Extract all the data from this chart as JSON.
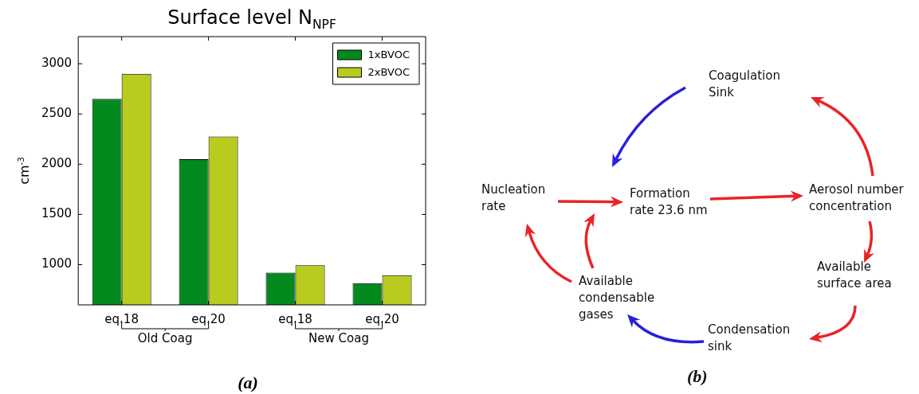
{
  "chart_data": [
    {
      "type": "bar",
      "title": "Surface level N$_{NPF}$",
      "ylabel": "cm$^{-3}$",
      "categories": [
        "eq.18",
        "eq.20",
        "eq.18",
        "eq.20"
      ],
      "series": [
        {
          "name": "1xBVOC",
          "color": "#038a1f",
          "values": [
            2650,
            2050,
            920,
            815
          ]
        },
        {
          "name": "2xBVOC",
          "color": "#b8cb1e",
          "values": [
            2900,
            2275,
            995,
            895
          ]
        }
      ],
      "ylim": [
        600,
        3270
      ],
      "yticks": [
        1000,
        1500,
        2000,
        2500,
        3000
      ],
      "legend": "top right",
      "annotations": [
        "Old Coag",
        "New Coag",
        "(a)"
      ]
    },
    {
      "type": "other",
      "annotations": [
        "Coagulation\nSink",
        "Nucleation\nrate",
        "Formation\nrate 23.6 nm",
        "Aerosol number\nconcentration",
        "Available\nsurface area",
        "Condensation\nsink",
        "Available\ncondensable\ngases",
        "(b)"
      ]
    }
  ]
}
